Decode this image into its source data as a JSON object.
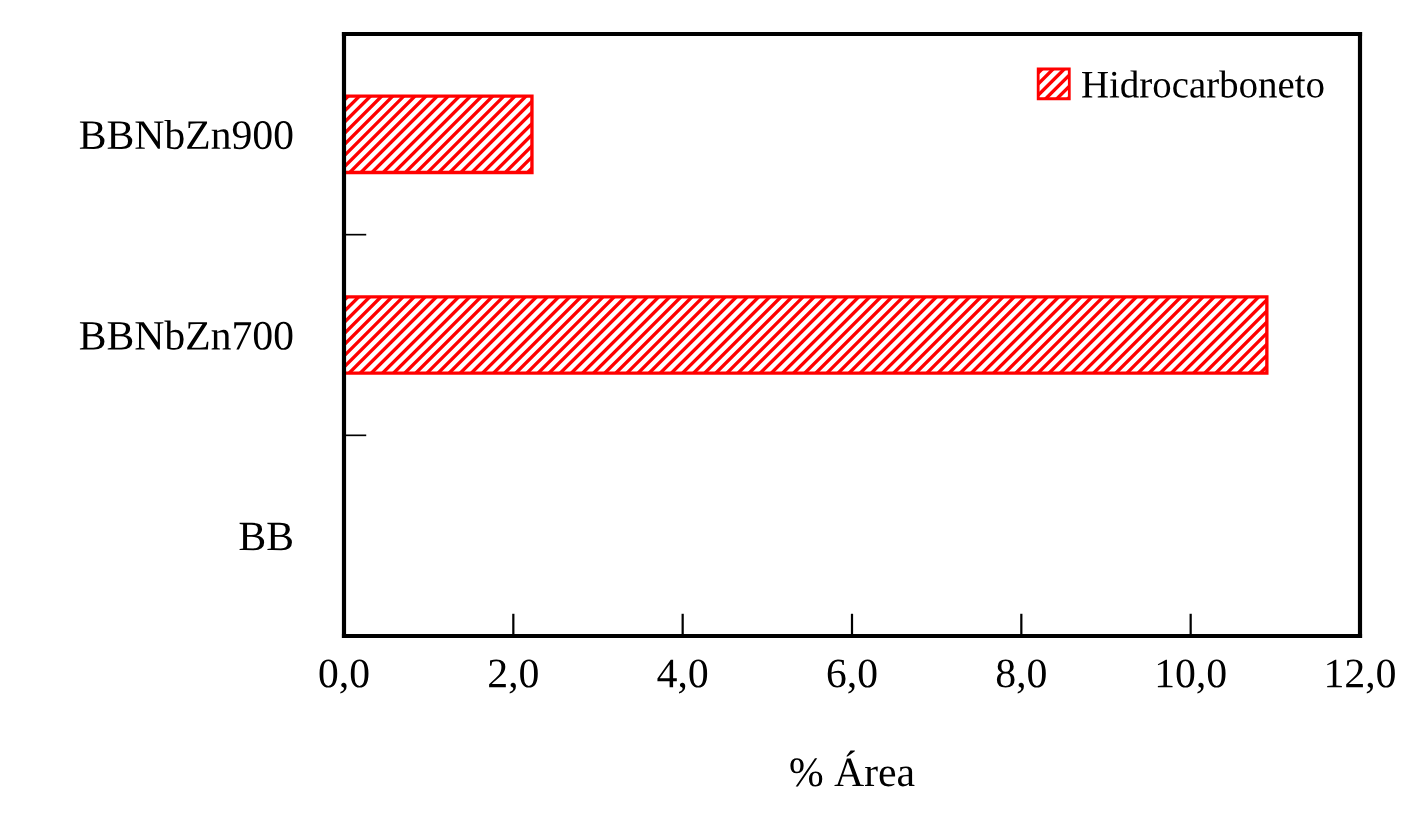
{
  "chart_data": {
    "type": "bar",
    "orientation": "horizontal",
    "xlabel": "% Área",
    "categories": [
      "BBNbZn900",
      "BBNbZn700",
      "BB"
    ],
    "series": [
      {
        "name": "Hidrocarboneto",
        "color": "#ff0000",
        "values": [
          2.22,
          10.9,
          0
        ]
      }
    ],
    "xlim": [
      0,
      12
    ],
    "xticks": [
      {
        "value": 0,
        "label": "0,0"
      },
      {
        "value": 2,
        "label": "2,0"
      },
      {
        "value": 4,
        "label": "4,0"
      },
      {
        "value": 6,
        "label": "6,0"
      },
      {
        "value": 8,
        "label": "8,0"
      },
      {
        "value": 10,
        "label": "10,0"
      },
      {
        "value": 12,
        "label": "12,0"
      }
    ],
    "grid": false,
    "legend": "top right"
  }
}
